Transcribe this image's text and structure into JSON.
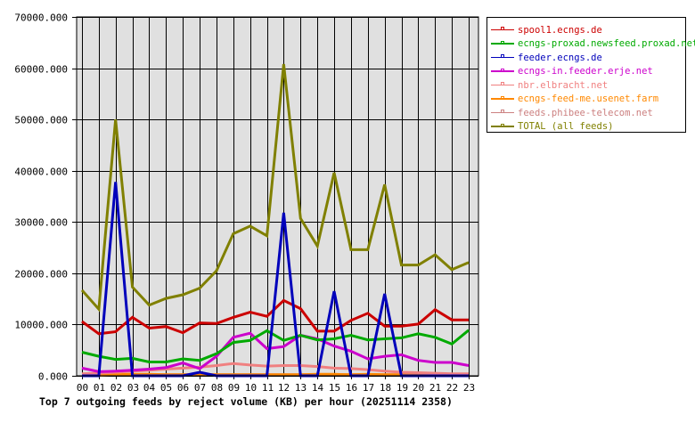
{
  "chart_data": {
    "type": "line",
    "title": "Top 7 outgoing feeds by reject volume (KB) per hour (20251114 2358)",
    "xlabel": "",
    "ylabel": "",
    "ylim": [
      0,
      70000
    ],
    "yticks": [
      "0.000",
      "10000.000",
      "20000.000",
      "30000.000",
      "40000.000",
      "50000.000",
      "60000.000",
      "70000.000"
    ],
    "categories": [
      "00",
      "01",
      "02",
      "03",
      "04",
      "05",
      "06",
      "07",
      "08",
      "09",
      "10",
      "11",
      "12",
      "13",
      "14",
      "15",
      "16",
      "17",
      "18",
      "19",
      "20",
      "21",
      "22",
      "23"
    ],
    "grid": true,
    "legend_position": "right",
    "series": [
      {
        "name": "spool1.ecngs.de",
        "color": "#cc0000",
        "values": [
          10600,
          8200,
          8600,
          11400,
          9300,
          9600,
          8400,
          10300,
          10200,
          11400,
          12400,
          11600,
          14700,
          13100,
          8700,
          8700,
          10800,
          12200,
          9700,
          9700,
          10100,
          12900,
          10900,
          10900
        ]
      },
      {
        "name": "ecngs-proxad.newsfeed.proxad.net",
        "color": "#00aa00",
        "values": [
          4600,
          3800,
          3200,
          3400,
          2700,
          2700,
          3300,
          3000,
          4300,
          6500,
          6900,
          8800,
          6900,
          7900,
          7000,
          7200,
          7900,
          7000,
          7200,
          7400,
          8200,
          7500,
          6200,
          8900
        ]
      },
      {
        "name": "feeder.ecngs.de",
        "color": "#0000bb",
        "values": [
          0,
          0,
          37800,
          0,
          0,
          0,
          0,
          700,
          0,
          0,
          0,
          0,
          31800,
          0,
          0,
          16500,
          0,
          0,
          16000,
          0,
          0,
          0,
          0,
          0
        ]
      },
      {
        "name": "ecngs-in.feeder.erje.net",
        "color": "#cc00cc",
        "values": [
          1500,
          800,
          900,
          1100,
          1300,
          1600,
          2500,
          1400,
          3800,
          7500,
          8300,
          5300,
          5700,
          7900,
          7200,
          5800,
          4800,
          3300,
          3800,
          4100,
          3000,
          2600,
          2600,
          2000
        ]
      },
      {
        "name": "nbr.elbracht.net",
        "color": "#f08080",
        "values": [
          400,
          500,
          700,
          900,
          1100,
          1300,
          1500,
          1700,
          2000,
          2400,
          2100,
          1900,
          2000,
          2000,
          1800,
          1500,
          1400,
          1200,
          900,
          700,
          600,
          500,
          400,
          400
        ]
      },
      {
        "name": "ecngs-feed-me.usenet.farm",
        "color": "#ff8800",
        "values": [
          100,
          100,
          200,
          300,
          300,
          200,
          200,
          200,
          200,
          200,
          200,
          200,
          200,
          200,
          300,
          300,
          200,
          300,
          200,
          200,
          200,
          200,
          200,
          200
        ]
      },
      {
        "name": "feeds.phibee-telecom.net",
        "color": "#cc8080",
        "values": [
          200,
          200,
          200,
          200,
          200,
          200,
          200,
          200,
          200,
          200,
          200,
          200,
          200,
          200,
          200,
          200,
          200,
          200,
          200,
          200,
          200,
          200,
          200,
          200
        ]
      },
      {
        "name": "TOTAL (all feeds)",
        "color": "#808000",
        "values": [
          16700,
          13000,
          50000,
          17300,
          13800,
          15100,
          15800,
          17100,
          20500,
          27700,
          29200,
          27300,
          60800,
          30700,
          25300,
          39600,
          24600,
          24600,
          37300,
          21600,
          21600,
          23600,
          20700,
          22100
        ]
      }
    ]
  },
  "legend": {
    "items": [
      {
        "label": "spool1.ecngs.de",
        "color": "#cc0000"
      },
      {
        "label": "ecngs-proxad.newsfeed.proxad.net",
        "color": "#00aa00"
      },
      {
        "label": "feeder.ecngs.de",
        "color": "#0000bb"
      },
      {
        "label": "ecngs-in.feeder.erje.net",
        "color": "#cc00cc"
      },
      {
        "label": "nbr.elbracht.net",
        "color": "#f08080"
      },
      {
        "label": "ecngs-feed-me.usenet.farm",
        "color": "#ff8800"
      },
      {
        "label": "feeds.phibee-telecom.net",
        "color": "#cc8080"
      },
      {
        "label": "TOTAL (all feeds)",
        "color": "#808000"
      }
    ]
  },
  "colors": {
    "plot_background": "#e0e0e0",
    "grid": "#000000",
    "page_background": "#ffffff"
  }
}
